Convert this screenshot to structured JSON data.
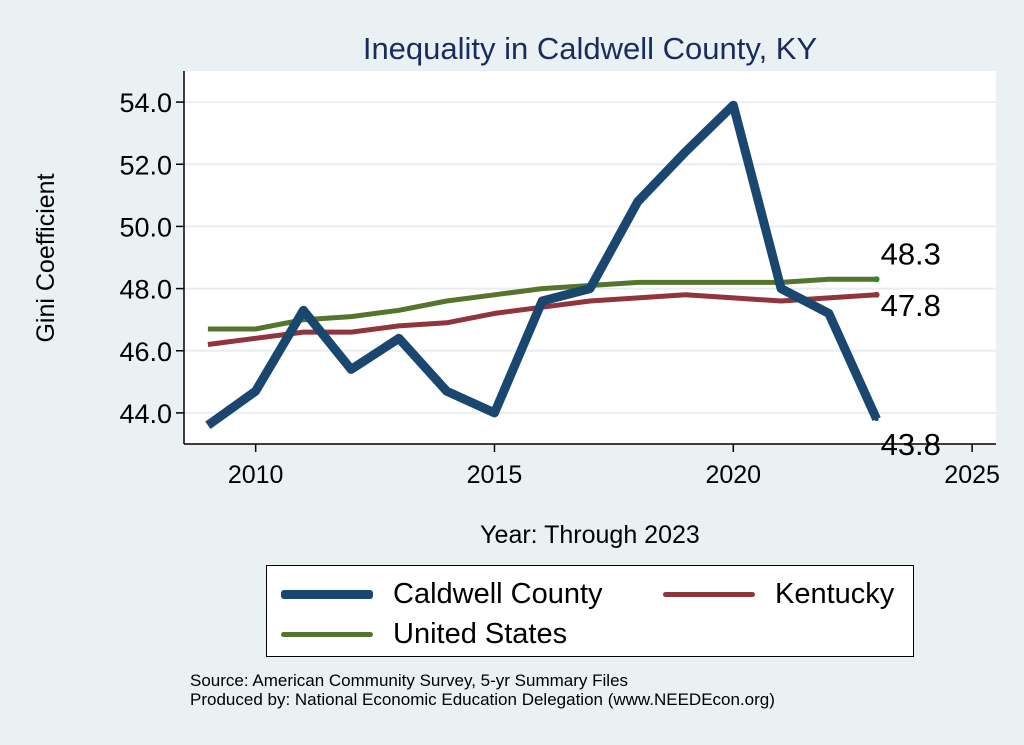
{
  "chart_data": {
    "type": "line",
    "title": "Inequality in Caldwell County, KY",
    "xlabel": "Year: Through 2023",
    "ylabel": "Gini Coefficient",
    "xlim": [
      2008.5,
      2025.5
    ],
    "ylim": [
      43.0,
      55.0
    ],
    "xticks": [
      2010,
      2015,
      2020,
      2025
    ],
    "yticks": [
      44.0,
      46.0,
      48.0,
      50.0,
      52.0,
      54.0
    ],
    "ytick_labels": [
      "44.0",
      "46.0",
      "48.0",
      "50.0",
      "52.0",
      "54.0"
    ],
    "xtick_labels": [
      "2010",
      "2015",
      "2020",
      "2025"
    ],
    "grid": true,
    "x": [
      2009,
      2010,
      2011,
      2012,
      2013,
      2014,
      2015,
      2016,
      2017,
      2018,
      2019,
      2020,
      2021,
      2022,
      2023
    ],
    "series": [
      {
        "name": "Caldwell County",
        "color": "#1a476f",
        "values": [
          43.6,
          44.7,
          47.3,
          45.4,
          46.4,
          44.7,
          44.0,
          47.6,
          48.0,
          50.8,
          52.4,
          53.9,
          48.0,
          47.2,
          43.8
        ],
        "end_label": "43.8"
      },
      {
        "name": "Kentucky",
        "color": "#90353b",
        "values": [
          46.2,
          46.4,
          46.6,
          46.6,
          46.8,
          46.9,
          47.2,
          47.4,
          47.6,
          47.7,
          47.8,
          47.7,
          47.6,
          47.7,
          47.8
        ],
        "end_label": "47.8"
      },
      {
        "name": "United States",
        "color": "#55752f",
        "values": [
          46.7,
          46.7,
          47.0,
          47.1,
          47.3,
          47.6,
          47.8,
          48.0,
          48.1,
          48.2,
          48.2,
          48.2,
          48.2,
          48.3,
          48.3
        ],
        "end_label": "48.3"
      }
    ]
  },
  "source_lines": [
    "Source: American Community Survey, 5-yr Summary Files",
    "Produced by: National Economic Education Delegation (www.NEEDEcon.org)"
  ]
}
